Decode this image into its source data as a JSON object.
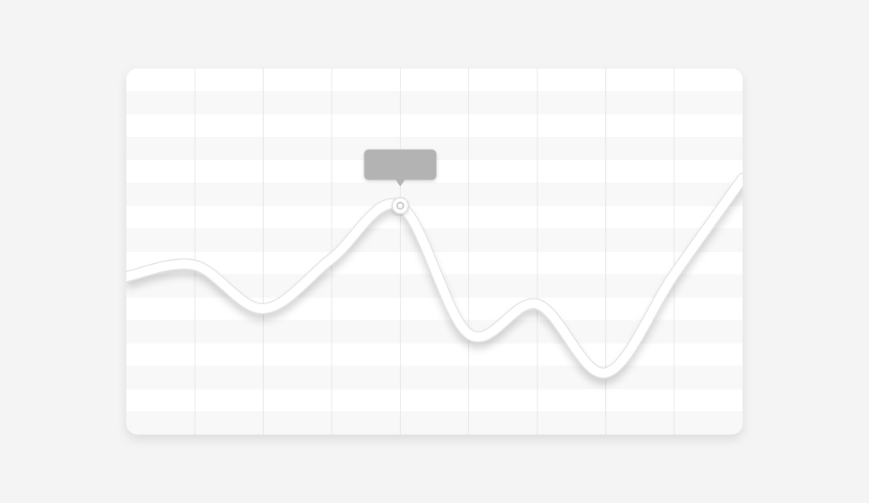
{
  "chart_data": {
    "type": "line",
    "categories": [
      null,
      null,
      null,
      null,
      null,
      null,
      null,
      null,
      null,
      null
    ],
    "values": [
      6.9,
      7.4,
      5.5,
      7.7,
      10.0,
      4.4,
      5.7,
      2.7,
      7.0,
      11.2
    ],
    "color": "#ffffff",
    "ylim": [
      0,
      16
    ],
    "yticks": [
      0,
      1,
      2,
      3,
      4,
      5,
      6,
      7,
      8,
      9,
      10,
      11,
      12,
      13,
      14,
      15,
      16
    ],
    "grid": true,
    "highlight": 4
  }
}
